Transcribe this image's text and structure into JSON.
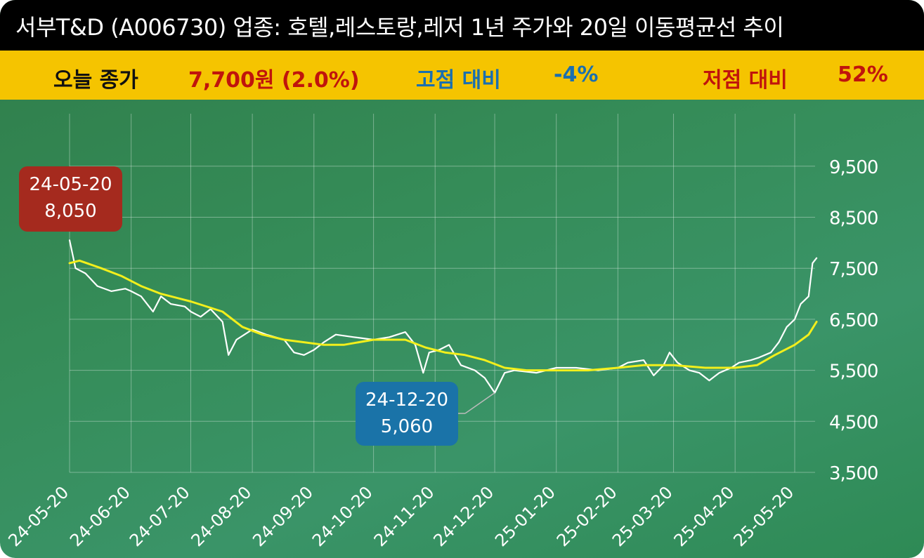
{
  "header": {
    "title": "서부T&D (A006730) 업종: 호텔,레스토랑,레저  1년 주가와 20일 이동평균선 추이"
  },
  "stats": {
    "close_label": "오늘 종가",
    "close_value": "7,700원 (2.0%)",
    "high_label": "고점 대비",
    "high_value": "-4%",
    "low_label": "저점 대비",
    "low_value": "52%"
  },
  "colors": {
    "title_bg": "#000000",
    "stat_bg": "#f5c400",
    "close_label": "#111111",
    "close_value": "#c0140c",
    "high_color": "#1a6fb0",
    "low_color": "#c0140c",
    "price_line": "#ffffff",
    "ma_line": "#f2ef1c",
    "high_bubble": "#a52a1e",
    "low_bubble": "#1a73a8"
  },
  "annotations": {
    "high": {
      "date": "24-05-20",
      "value": "8,050"
    },
    "low": {
      "date": "24-12-20",
      "value": "5,060"
    }
  },
  "chart_data": {
    "type": "line",
    "title": "",
    "xlabel": "",
    "ylabel": "",
    "ylim": [
      3500,
      10000
    ],
    "y_ticks": [
      "3,500",
      "4,500",
      "5,500",
      "6,500",
      "7,500",
      "8,500",
      "9,500"
    ],
    "y_tick_values": [
      3500,
      4500,
      5500,
      6500,
      7500,
      8500,
      9500
    ],
    "x_ticks": [
      "24-05-20",
      "24-06-20",
      "24-07-20",
      "24-08-20",
      "24-09-20",
      "24-10-20",
      "24-11-20",
      "24-12-20",
      "25-01-20",
      "25-02-20",
      "25-03-20",
      "25-04-20",
      "25-05-20"
    ],
    "grid": true,
    "series": [
      {
        "role": "price",
        "points": [
          [
            "24-05-20",
            8050
          ],
          [
            "24-05-23",
            7500
          ],
          [
            "24-05-28",
            7400
          ],
          [
            "24-06-03",
            7150
          ],
          [
            "24-06-10",
            7050
          ],
          [
            "24-06-17",
            7100
          ],
          [
            "24-06-20",
            7050
          ],
          [
            "24-06-25",
            6950
          ],
          [
            "24-07-01",
            6650
          ],
          [
            "24-07-05",
            6950
          ],
          [
            "24-07-10",
            6800
          ],
          [
            "24-07-17",
            6750
          ],
          [
            "24-07-20",
            6650
          ],
          [
            "24-07-25",
            6550
          ],
          [
            "24-07-30",
            6700
          ],
          [
            "24-08-05",
            6450
          ],
          [
            "24-08-08",
            5800
          ],
          [
            "24-08-12",
            6100
          ],
          [
            "24-08-20",
            6300
          ],
          [
            "24-08-27",
            6200
          ],
          [
            "24-09-05",
            6100
          ],
          [
            "24-09-10",
            5850
          ],
          [
            "24-09-15",
            5800
          ],
          [
            "24-09-20",
            5900
          ],
          [
            "24-09-25",
            6050
          ],
          [
            "24-10-01",
            6200
          ],
          [
            "24-10-10",
            6150
          ],
          [
            "24-10-20",
            6100
          ],
          [
            "24-10-28",
            6150
          ],
          [
            "24-11-05",
            6250
          ],
          [
            "24-11-10",
            6000
          ],
          [
            "24-11-14",
            5450
          ],
          [
            "24-11-17",
            5850
          ],
          [
            "24-11-22",
            5900
          ],
          [
            "24-11-27",
            6000
          ],
          [
            "24-12-03",
            5600
          ],
          [
            "24-12-10",
            5500
          ],
          [
            "24-12-15",
            5350
          ],
          [
            "24-12-20",
            5060
          ],
          [
            "24-12-25",
            5450
          ],
          [
            "24-12-30",
            5500
          ],
          [
            "25-01-10",
            5450
          ],
          [
            "25-01-20",
            5550
          ],
          [
            "25-01-30",
            5550
          ],
          [
            "25-02-10",
            5500
          ],
          [
            "25-02-20",
            5550
          ],
          [
            "25-02-25",
            5650
          ],
          [
            "25-03-05",
            5700
          ],
          [
            "25-03-10",
            5400
          ],
          [
            "25-03-15",
            5600
          ],
          [
            "25-03-18",
            5850
          ],
          [
            "25-03-22",
            5650
          ],
          [
            "25-03-28",
            5500
          ],
          [
            "25-04-02",
            5450
          ],
          [
            "25-04-07",
            5300
          ],
          [
            "25-04-12",
            5450
          ],
          [
            "25-04-18",
            5550
          ],
          [
            "25-04-22",
            5650
          ],
          [
            "25-04-28",
            5700
          ],
          [
            "25-05-02",
            5750
          ],
          [
            "25-05-08",
            5850
          ],
          [
            "25-05-12",
            6050
          ],
          [
            "25-05-16",
            6350
          ],
          [
            "25-05-20",
            6500
          ],
          [
            "25-05-23",
            6800
          ],
          [
            "25-05-27",
            6950
          ],
          [
            "25-05-29",
            7600
          ],
          [
            "25-05-31",
            7700
          ]
        ]
      },
      {
        "role": "ma20",
        "points": [
          [
            "24-05-20",
            7600
          ],
          [
            "24-05-25",
            7650
          ],
          [
            "24-06-05",
            7500
          ],
          [
            "24-06-15",
            7350
          ],
          [
            "24-06-25",
            7150
          ],
          [
            "24-07-05",
            7000
          ],
          [
            "24-07-20",
            6850
          ],
          [
            "24-08-05",
            6650
          ],
          [
            "24-08-15",
            6350
          ],
          [
            "24-08-25",
            6200
          ],
          [
            "24-09-05",
            6100
          ],
          [
            "24-09-15",
            6050
          ],
          [
            "24-09-25",
            6000
          ],
          [
            "24-10-05",
            6000
          ],
          [
            "24-10-20",
            6100
          ],
          [
            "24-11-05",
            6100
          ],
          [
            "24-11-15",
            5950
          ],
          [
            "24-11-25",
            5850
          ],
          [
            "24-12-05",
            5800
          ],
          [
            "24-12-15",
            5700
          ],
          [
            "24-12-25",
            5550
          ],
          [
            "25-01-05",
            5500
          ],
          [
            "25-01-20",
            5500
          ],
          [
            "25-02-05",
            5500
          ],
          [
            "25-02-20",
            5550
          ],
          [
            "25-03-05",
            5600
          ],
          [
            "25-03-20",
            5600
          ],
          [
            "25-04-05",
            5550
          ],
          [
            "25-04-20",
            5550
          ],
          [
            "25-05-01",
            5600
          ],
          [
            "25-05-10",
            5800
          ],
          [
            "25-05-20",
            6000
          ],
          [
            "25-05-27",
            6200
          ],
          [
            "25-05-31",
            6450
          ]
        ]
      }
    ]
  }
}
